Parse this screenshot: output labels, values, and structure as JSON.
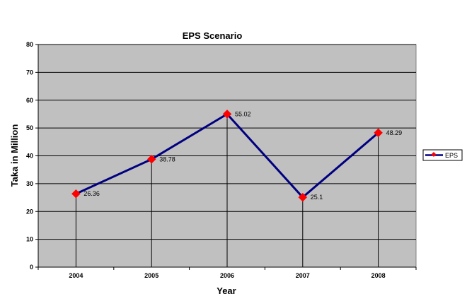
{
  "chart_data": {
    "type": "line",
    "title": "EPS Scenario",
    "xlabel": "Year",
    "ylabel": "Taka in Million",
    "categories": [
      "2004",
      "2005",
      "2006",
      "2007",
      "2008"
    ],
    "series": [
      {
        "name": "EPS",
        "values": [
          26.36,
          38.78,
          55.02,
          25.1,
          48.29
        ],
        "data_labels": [
          "26.36",
          "38.78",
          "55.02",
          "25.1",
          "48.29"
        ]
      }
    ],
    "ylim": [
      0,
      80
    ],
    "yticks": [
      0,
      10,
      20,
      30,
      40,
      50,
      60,
      70,
      80
    ],
    "grid": true,
    "legend": "right",
    "colors": {
      "plot_background": "#c0c0c0",
      "line": "#000080",
      "marker": "#ff0000",
      "grid": "#000000"
    }
  }
}
